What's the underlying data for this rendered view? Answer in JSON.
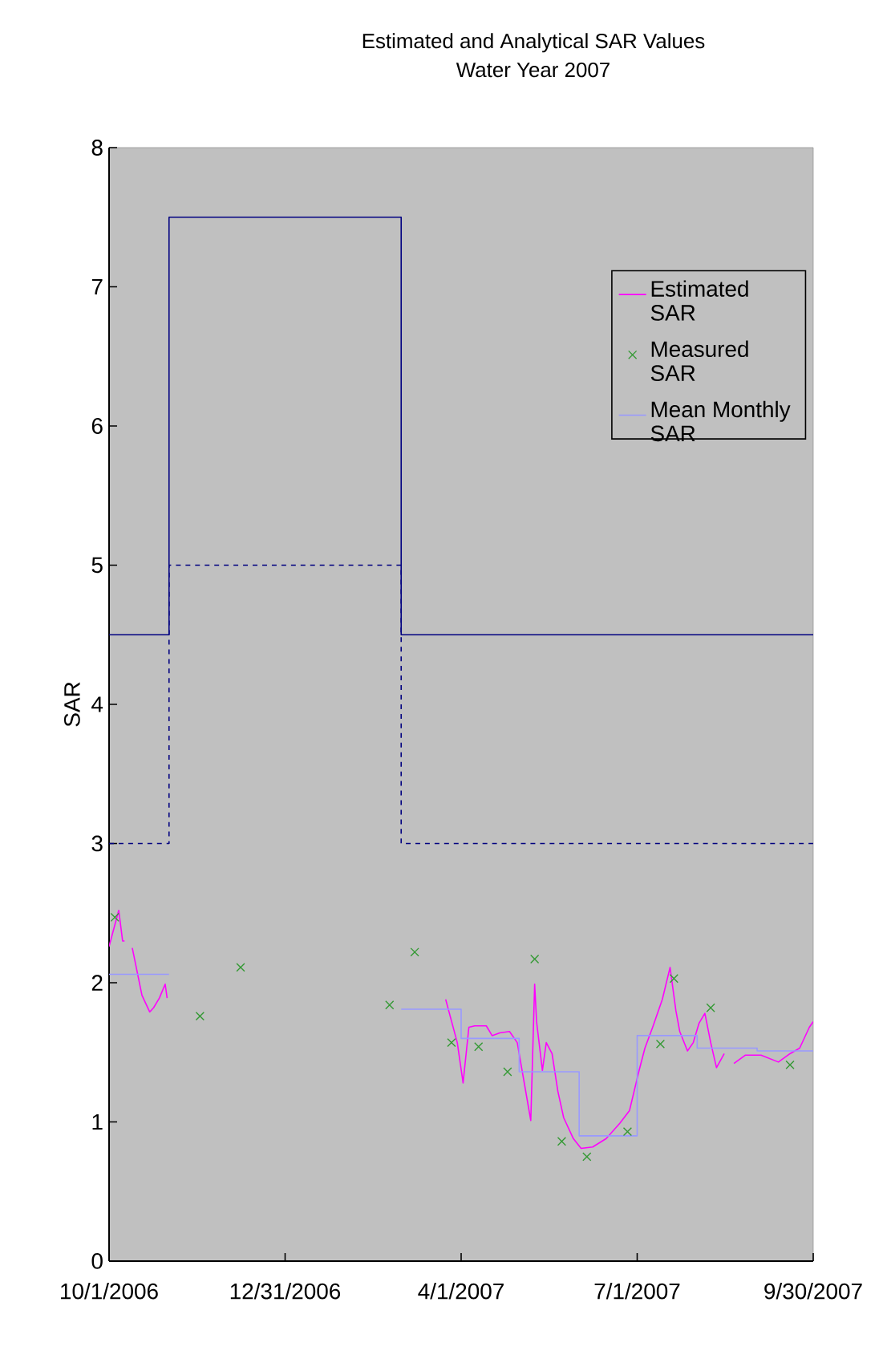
{
  "chart_data": {
    "type": "line",
    "title": "Estimated and Analytical SAR Values",
    "subtitle": "Water Year 2007",
    "ylabel": "SAR",
    "xlim": [
      "2006-10-01",
      "2007-09-30"
    ],
    "xticks": [
      {
        "value": "2006-10-01",
        "label": "10/1/2006"
      },
      {
        "value": "2006-12-31",
        "label": "12/31/2006"
      },
      {
        "value": "2007-04-01",
        "label": "4/1/2007"
      },
      {
        "value": "2007-07-01",
        "label": "7/1/2007"
      },
      {
        "value": "2007-09-30",
        "label": "9/30/2007"
      }
    ],
    "ylim": [
      0,
      8
    ],
    "yticks": [
      0,
      1,
      2,
      3,
      4,
      5,
      6,
      7,
      8
    ],
    "legend": "top right",
    "series": [
      {
        "type": "step",
        "color": "#000080",
        "line_style": "solid",
        "x": [
          "2006-10-01",
          "2006-11-01",
          "2007-03-01",
          "2007-09-30"
        ],
        "values": [
          4.5,
          7.5,
          4.5,
          4.5
        ]
      },
      {
        "type": "step",
        "color": "#000080",
        "line_style": "dashed",
        "x": [
          "2006-10-01",
          "2006-11-01",
          "2007-03-01",
          "2007-09-30"
        ],
        "values": [
          3,
          5,
          3,
          3
        ]
      },
      {
        "name": "Estimated SAR",
        "color": "#ff00ff",
        "x": [
          "2006-10-01",
          "2006-10-06",
          "2006-10-08",
          "2006-10-09",
          "2006-10-11",
          "2006-10-13",
          "2006-10-18",
          "2006-10-22",
          "2006-10-24",
          "2006-10-27",
          "2006-10-30",
          "2006-10-31",
          "2006-11-01",
          "2007-03-24",
          "2007-03-30",
          "2007-04-02",
          "2007-04-05",
          "2007-04-08",
          "2007-04-14",
          "2007-04-17",
          "2007-04-21",
          "2007-04-26",
          "2007-04-30",
          "2007-05-07",
          "2007-05-09",
          "2007-05-10",
          "2007-05-13",
          "2007-05-15",
          "2007-05-18",
          "2007-05-21",
          "2007-05-24",
          "2007-05-29",
          "2007-06-02",
          "2007-06-08",
          "2007-06-15",
          "2007-06-22",
          "2007-06-27",
          "2007-07-02",
          "2007-07-05",
          "2007-07-09",
          "2007-07-14",
          "2007-07-18",
          "2007-07-21",
          "2007-07-23",
          "2007-07-27",
          "2007-07-30",
          "2007-08-02",
          "2007-08-05",
          "2007-08-08",
          "2007-08-11",
          "2007-08-15",
          "2007-08-17",
          "2007-08-20",
          "2007-08-26",
          "2007-09-03",
          "2007-09-12",
          "2007-09-18",
          "2007-09-23",
          "2007-09-28",
          "2007-09-30"
        ],
        "values": [
          2.26,
          2.52,
          2.3,
          2.3,
          null,
          2.25,
          1.91,
          1.79,
          1.82,
          1.89,
          1.99,
          1.89,
          null,
          1.88,
          1.57,
          1.28,
          1.68,
          1.69,
          1.69,
          1.62,
          1.64,
          1.65,
          1.57,
          1.01,
          1.99,
          1.72,
          1.37,
          1.57,
          1.49,
          1.22,
          1.03,
          0.88,
          0.81,
          0.82,
          0.88,
          0.99,
          1.08,
          1.37,
          1.53,
          1.68,
          1.88,
          2.11,
          1.8,
          1.65,
          1.51,
          1.57,
          1.71,
          1.78,
          1.57,
          1.39,
          1.49,
          null,
          1.42,
          1.48,
          1.48,
          1.43,
          1.49,
          1.53,
          1.68,
          1.72
        ]
      },
      {
        "name": "Measured SAR",
        "type": "scatter",
        "marker": "cross",
        "color": "#339933",
        "x": [
          "2006-10-04",
          "2006-11-17",
          "2006-12-08",
          "2007-02-23",
          "2007-03-08",
          "2007-03-27",
          "2007-04-10",
          "2007-04-25",
          "2007-05-09",
          "2007-05-23",
          "2007-06-05",
          "2007-06-26",
          "2007-07-13",
          "2007-07-20",
          "2007-08-08",
          "2007-09-18"
        ],
        "values": [
          2.47,
          1.76,
          2.11,
          1.84,
          2.22,
          1.57,
          1.54,
          1.36,
          2.17,
          0.86,
          0.75,
          0.93,
          1.56,
          2.03,
          1.82,
          1.41
        ]
      },
      {
        "name": "Mean Monthly SAR",
        "type": "step",
        "color": "#9999ff",
        "line_style": "solid",
        "x": [
          "2006-10-01",
          "2006-11-01",
          "2007-03-01",
          "2007-04-01",
          "2007-05-01",
          "2007-06-01",
          "2007-07-01",
          "2007-08-01",
          "2007-09-01",
          "2007-09-30"
        ],
        "values": [
          2.06,
          null,
          1.81,
          1.6,
          1.36,
          0.9,
          1.62,
          1.53,
          1.51,
          1.51
        ]
      }
    ]
  }
}
